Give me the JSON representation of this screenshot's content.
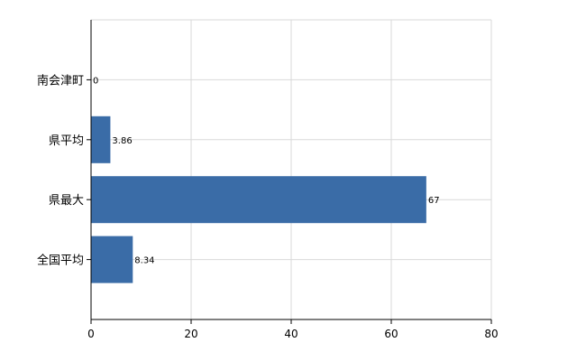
{
  "chart_data": {
    "type": "bar",
    "orientation": "horizontal",
    "categories": [
      "南会津町",
      "県平均",
      "県最大",
      "全国平均"
    ],
    "values": [
      0,
      3.86,
      67,
      8.34
    ],
    "data_labels": [
      "0",
      "3.86",
      "67",
      "8.34"
    ],
    "x_ticks": [
      "0",
      "20",
      "40",
      "60",
      "80"
    ],
    "xlim": [
      0,
      80
    ],
    "grid": true,
    "legend": "none",
    "title": "",
    "xlabel": "",
    "ylabel": "",
    "bar_color": "#3a6ca7",
    "grid_color": "#d9d9d9"
  }
}
